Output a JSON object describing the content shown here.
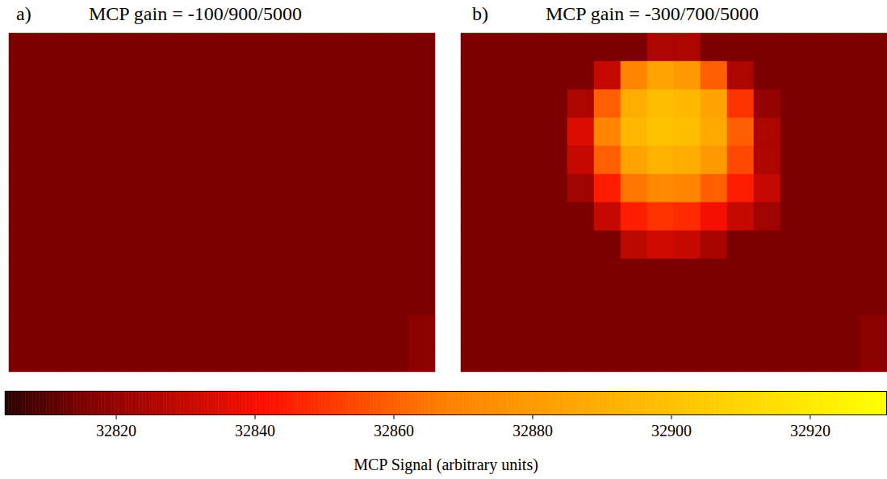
{
  "chart_data": {
    "type": "heatmap",
    "tick_labels": false,
    "panels": [
      {
        "letter": "a)",
        "title": "MCP gain = -100/900/5000",
        "cells": [
          [
            32815,
            32815,
            32815,
            32815,
            32815,
            32815,
            32815,
            32815,
            32815,
            32815,
            32815,
            32815,
            32815,
            32815,
            32815,
            32815
          ],
          [
            32815,
            32815,
            32815,
            32815,
            32815,
            32815,
            32815,
            32815,
            32815,
            32815,
            32815,
            32815,
            32815,
            32815,
            32815,
            32815
          ],
          [
            32815,
            32815,
            32815,
            32815,
            32815,
            32815,
            32815,
            32815,
            32815,
            32815,
            32815,
            32815,
            32815,
            32815,
            32815,
            32815
          ],
          [
            32815,
            32815,
            32815,
            32815,
            32815,
            32815,
            32815,
            32815,
            32815,
            32815,
            32815,
            32815,
            32815,
            32815,
            32815,
            32815
          ],
          [
            32815,
            32815,
            32815,
            32815,
            32815,
            32815,
            32815,
            32815,
            32815,
            32815,
            32815,
            32815,
            32815,
            32815,
            32815,
            32815
          ],
          [
            32815,
            32815,
            32815,
            32815,
            32815,
            32815,
            32815,
            32815,
            32815,
            32815,
            32815,
            32815,
            32815,
            32815,
            32815,
            32815
          ],
          [
            32815,
            32815,
            32815,
            32815,
            32815,
            32815,
            32815,
            32815,
            32815,
            32815,
            32815,
            32815,
            32815,
            32815,
            32815,
            32815
          ],
          [
            32815,
            32815,
            32815,
            32815,
            32815,
            32815,
            32815,
            32815,
            32815,
            32815,
            32815,
            32815,
            32815,
            32815,
            32815,
            32815
          ],
          [
            32815,
            32815,
            32815,
            32815,
            32815,
            32815,
            32815,
            32815,
            32815,
            32815,
            32815,
            32815,
            32815,
            32815,
            32815,
            32815
          ],
          [
            32815,
            32815,
            32815,
            32815,
            32815,
            32815,
            32815,
            32815,
            32815,
            32815,
            32815,
            32815,
            32815,
            32815,
            32815,
            32815
          ],
          [
            32815,
            32815,
            32815,
            32815,
            32815,
            32815,
            32815,
            32815,
            32815,
            32815,
            32815,
            32815,
            32815,
            32815,
            32815,
            32818
          ],
          [
            32815,
            32815,
            32815,
            32815,
            32815,
            32815,
            32815,
            32815,
            32815,
            32815,
            32815,
            32815,
            32815,
            32815,
            32815,
            32818
          ]
        ]
      },
      {
        "letter": "b)",
        "title": "MCP gain = -300/700/5000",
        "cells": [
          [
            32815,
            32815,
            32815,
            32815,
            32815,
            32815,
            32815,
            32825,
            32825,
            32815,
            32815,
            32815,
            32815,
            32815,
            32815,
            32815
          ],
          [
            32815,
            32815,
            32815,
            32815,
            32815,
            32830,
            32870,
            32885,
            32880,
            32860,
            32825,
            32815,
            32815,
            32815,
            32815,
            32815
          ],
          [
            32815,
            32815,
            32815,
            32815,
            32825,
            32860,
            32890,
            32898,
            32895,
            32885,
            32850,
            32820,
            32815,
            32815,
            32815,
            32815
          ],
          [
            32815,
            32815,
            32815,
            32815,
            32835,
            32870,
            32895,
            32900,
            32898,
            32888,
            32860,
            32825,
            32815,
            32815,
            32815,
            32815
          ],
          [
            32815,
            32815,
            32815,
            32815,
            32830,
            32860,
            32885,
            32892,
            32890,
            32880,
            32855,
            32825,
            32815,
            32815,
            32815,
            32815
          ],
          [
            32815,
            32815,
            32815,
            32815,
            32822,
            32845,
            32865,
            32872,
            32870,
            32860,
            32845,
            32830,
            32815,
            32815,
            32815,
            32815
          ],
          [
            32815,
            32815,
            32815,
            32815,
            32815,
            32830,
            32845,
            32850,
            32848,
            32840,
            32830,
            32822,
            32815,
            32815,
            32815,
            32815
          ],
          [
            32815,
            32815,
            32815,
            32815,
            32815,
            32815,
            32828,
            32832,
            32830,
            32824,
            32815,
            32815,
            32815,
            32815,
            32815,
            32815
          ],
          [
            32815,
            32815,
            32815,
            32815,
            32815,
            32815,
            32815,
            32815,
            32815,
            32815,
            32815,
            32815,
            32815,
            32815,
            32815,
            32815
          ],
          [
            32815,
            32815,
            32815,
            32815,
            32815,
            32815,
            32815,
            32815,
            32815,
            32815,
            32815,
            32815,
            32815,
            32815,
            32815,
            32815
          ],
          [
            32815,
            32815,
            32815,
            32815,
            32815,
            32815,
            32815,
            32815,
            32815,
            32815,
            32815,
            32815,
            32815,
            32815,
            32815,
            32818
          ],
          [
            32815,
            32815,
            32815,
            32815,
            32815,
            32815,
            32815,
            32815,
            32815,
            32815,
            32815,
            32815,
            32815,
            32815,
            32815,
            32818
          ]
        ]
      }
    ],
    "colorbar": {
      "label": "MCP Signal (arbitrary units)",
      "range": [
        32804,
        32931
      ],
      "ticks": [
        32820,
        32840,
        32860,
        32880,
        32900,
        32920
      ]
    }
  }
}
